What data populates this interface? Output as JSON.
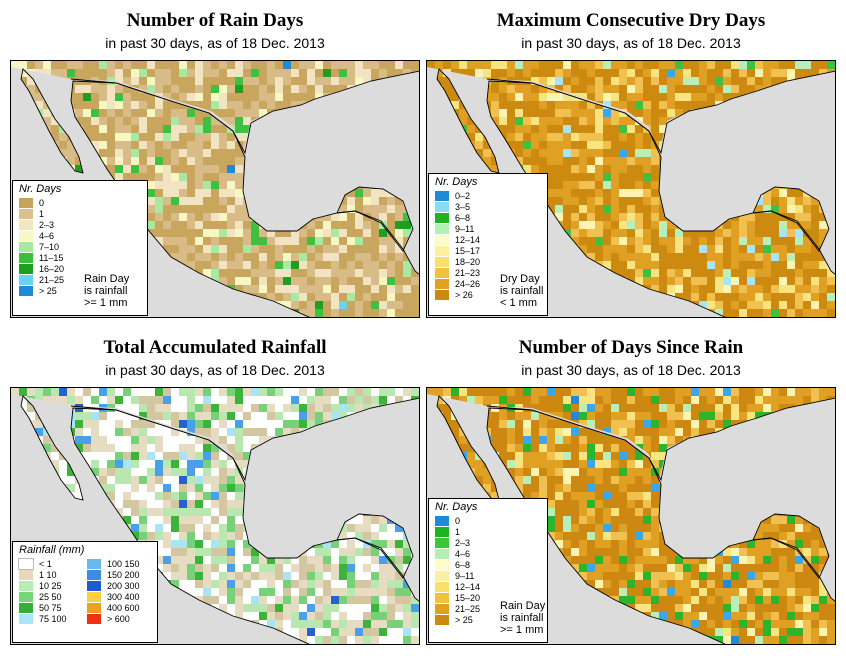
{
  "panels": [
    {
      "title": "Number of Rain Days",
      "subtitle": "in past 30 days, as of  18 Dec. 2013",
      "palette": [
        "#c9a65e",
        "#d8bb87",
        "#f2e4c3",
        "#f7f7c4",
        "#a8e8a0",
        "#40c040",
        "#1f9e1f",
        "#6ad4f0",
        "#1e8ad8"
      ],
      "weights": [
        0.38,
        0.3,
        0.18,
        0.06,
        0.04,
        0.02,
        0.01,
        0.005,
        0.005
      ],
      "legend": {
        "title": "Nr. Days",
        "items": [
          {
            "color": "#c8a25a",
            "label": "0"
          },
          {
            "color": "#dcc08c",
            "label": "1"
          },
          {
            "color": "#f3e6c6",
            "label": "2–3"
          },
          {
            "color": "#f8f8c4",
            "label": "4–6"
          },
          {
            "color": "#a8e8a0",
            "label": "7–10"
          },
          {
            "color": "#38c038",
            "label": "11–15"
          },
          {
            "color": "#1e9e1e",
            "label": "16–20"
          },
          {
            "color": "#6ad4f0",
            "label": "21–25"
          },
          {
            "color": "#1e8ad8",
            "label": "> 25"
          }
        ]
      },
      "note": [
        "Rain Day",
        "is rainfall",
        ">= 1 mm"
      ]
    },
    {
      "title": "Maximum Consecutive Dry Days",
      "subtitle": "in past 30 days, as of  18 Dec. 2013",
      "palette": [
        "#cc8a10",
        "#e0a024",
        "#f0c050",
        "#f8e480",
        "#fcf4b0",
        "#b8eeb8",
        "#40c040",
        "#a8e4f4",
        "#3aa8e8"
      ],
      "weights": [
        0.42,
        0.28,
        0.12,
        0.07,
        0.04,
        0.03,
        0.02,
        0.015,
        0.005
      ],
      "legend": {
        "title": "Nr. Days",
        "items": [
          {
            "color": "#1e8ad8",
            "label": "0–2"
          },
          {
            "color": "#8adcf4",
            "label": "3–5"
          },
          {
            "color": "#1eb41e",
            "label": "6–8"
          },
          {
            "color": "#b4f0b4",
            "label": "9–11"
          },
          {
            "color": "#fcfcc8",
            "label": "12–14"
          },
          {
            "color": "#fcf0a0",
            "label": "15–17"
          },
          {
            "color": "#f8e070",
            "label": "18–20"
          },
          {
            "color": "#f0c040",
            "label": "21–23"
          },
          {
            "color": "#e0a020",
            "label": "24–26"
          },
          {
            "color": "#cc8810",
            "label": "> 26"
          }
        ]
      },
      "note": [
        "Dry Day",
        "is rainfall",
        "< 1 mm"
      ]
    },
    {
      "title": "Total Accumulated Rainfall",
      "subtitle": "in past 30 days, as of  18 Dec. 2013",
      "palette": [
        "#ffffff",
        "#e6dcc2",
        "#d4c6a0",
        "#b8e8b0",
        "#78d078",
        "#3cb43c",
        "#a8e4f4",
        "#4aa0e8",
        "#2860d0"
      ],
      "weights": [
        0.28,
        0.22,
        0.14,
        0.14,
        0.1,
        0.05,
        0.03,
        0.025,
        0.015
      ],
      "legend": {
        "title": "Rainfall (mm)",
        "items": [
          {
            "color": "#ffffff",
            "label": "< 1"
          },
          {
            "color": "#ead9b8",
            "label": "1   10"
          },
          {
            "color": "#b4eeb0",
            "label": "10   25"
          },
          {
            "color": "#78d478",
            "label": "25   50"
          },
          {
            "color": "#34b034",
            "label": "50   75"
          },
          {
            "color": "#aae6f8",
            "label": "75   100"
          },
          {
            "color": "#6ab8ec",
            "label": "100  150"
          },
          {
            "color": "#3a8ee0",
            "label": "150  200"
          },
          {
            "color": "#1e5ad2",
            "label": "200  300"
          },
          {
            "color": "#f8d040",
            "label": "300  400"
          },
          {
            "color": "#f0a020",
            "label": "400  600"
          },
          {
            "color": "#f03010",
            "label": "> 600"
          }
        ]
      },
      "note": []
    },
    {
      "title": "Number of Days Since Rain",
      "subtitle": "in past 30 days, as of  18 Dec. 2013",
      "palette": [
        "#cc8810",
        "#e0a024",
        "#f0c050",
        "#f8e480",
        "#fcf4b0",
        "#b8eeb8",
        "#2cb42c",
        "#3aa8e8",
        "#1e8ad8"
      ],
      "weights": [
        0.4,
        0.25,
        0.1,
        0.06,
        0.04,
        0.04,
        0.07,
        0.03,
        0.01
      ],
      "legend": {
        "title": "Nr. Days",
        "items": [
          {
            "color": "#1e8ad8",
            "label": "0"
          },
          {
            "color": "#1eb41e",
            "label": "1"
          },
          {
            "color": "#38c838",
            "label": "2–3"
          },
          {
            "color": "#b4f0b4",
            "label": "4–6"
          },
          {
            "color": "#fcfcc8",
            "label": "6–8"
          },
          {
            "color": "#fcf0a0",
            "label": "9–11"
          },
          {
            "color": "#f8e070",
            "label": "12–14"
          },
          {
            "color": "#f0c040",
            "label": "15–20"
          },
          {
            "color": "#e0a020",
            "label": "21–25"
          },
          {
            "color": "#cc8810",
            "label": "> 25"
          }
        ]
      },
      "note": [
        "Rain Day",
        "is rainfall",
        ">= 1 mm"
      ]
    }
  ]
}
